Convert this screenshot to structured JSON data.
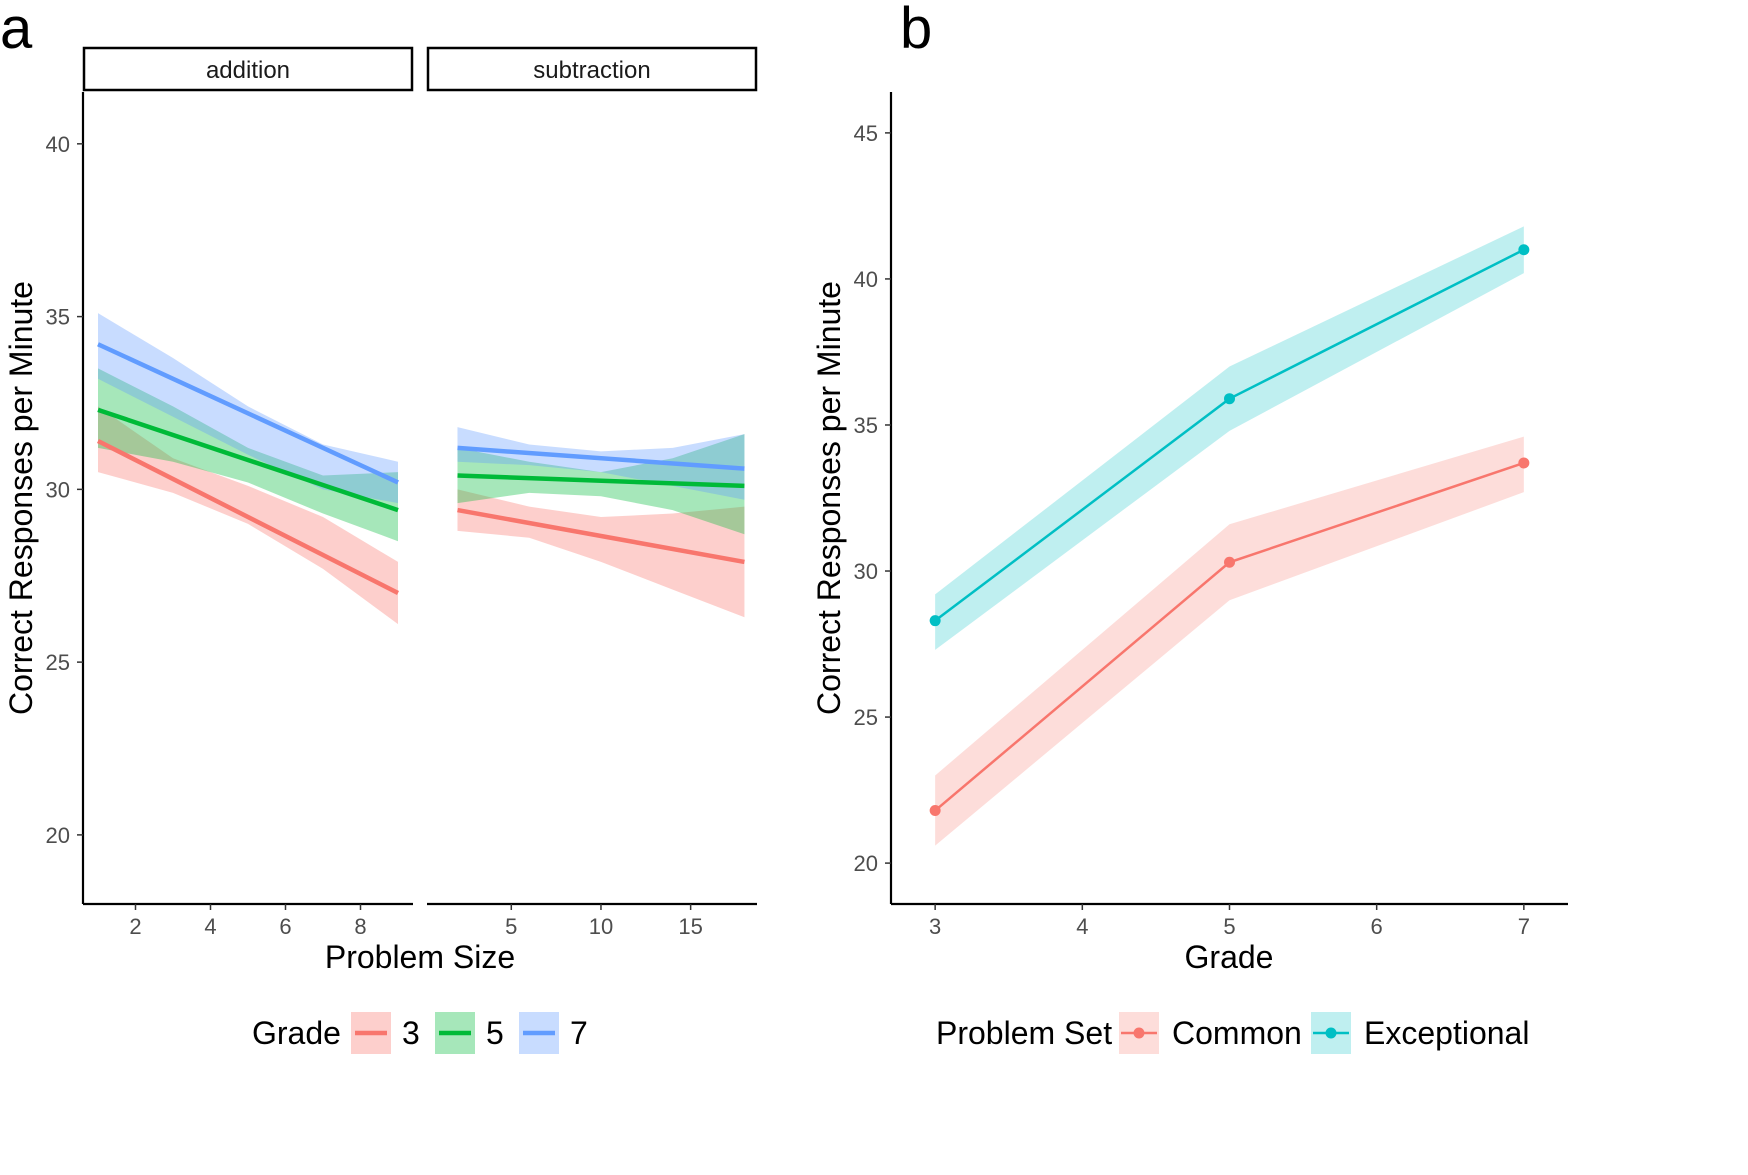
{
  "panels": {
    "a": {
      "letter": "a"
    },
    "b": {
      "letter": "b"
    }
  },
  "colors": {
    "grade_3": "#F8766D",
    "grade_5": "#00BA38",
    "grade_7": "#619CFF",
    "common": "#F8766D",
    "exceptional": "#00BFC4"
  },
  "chart_data": [
    {
      "type": "line",
      "panel": "a",
      "ylabel": "Correct Responses per Minute",
      "xlabel": "Problem Size",
      "ylim": [
        18,
        41.5
      ],
      "yticks": [
        20,
        25,
        30,
        35,
        40
      ],
      "legend": {
        "title": "Grade",
        "position": "bottom",
        "entries": [
          "3",
          "5",
          "7"
        ]
      },
      "facets": [
        {
          "label": "addition",
          "xlim": [
            0.6,
            9.4
          ],
          "xticks": [
            2,
            4,
            6,
            8
          ],
          "series": [
            {
              "name": "3",
              "x": [
                1,
                9
              ],
              "y": [
                31.4,
                27.0
              ],
              "lower": [
                [
                  1,
                  30.5
                ],
                [
                  3,
                  29.9
                ],
                [
                  5,
                  29.0
                ],
                [
                  7,
                  27.7
                ],
                [
                  9,
                  26.1
                ]
              ],
              "upper": [
                [
                  1,
                  32.4
                ],
                [
                  3,
                  30.9
                ],
                [
                  5,
                  30.1
                ],
                [
                  7,
                  29.2
                ],
                [
                  9,
                  27.9
                ]
              ]
            },
            {
              "name": "5",
              "x": [
                1,
                9
              ],
              "y": [
                32.3,
                29.4
              ],
              "lower": [
                [
                  1,
                  31.2
                ],
                [
                  3,
                  30.8
                ],
                [
                  5,
                  30.2
                ],
                [
                  7,
                  29.3
                ],
                [
                  9,
                  28.5
                ]
              ],
              "upper": [
                [
                  1,
                  33.5
                ],
                [
                  3,
                  32.4
                ],
                [
                  5,
                  31.2
                ],
                [
                  7,
                  30.4
                ],
                [
                  9,
                  30.5
                ]
              ]
            },
            {
              "name": "7",
              "x": [
                1,
                9
              ],
              "y": [
                34.2,
                30.2
              ],
              "lower": [
                [
                  1,
                  33.2
                ],
                [
                  3,
                  32.1
                ],
                [
                  5,
                  31.0
                ],
                [
                  7,
                  30.0
                ],
                [
                  9,
                  29.6
                ]
              ],
              "upper": [
                [
                  1,
                  35.1
                ],
                [
                  3,
                  33.8
                ],
                [
                  5,
                  32.4
                ],
                [
                  7,
                  31.3
                ],
                [
                  9,
                  30.8
                ]
              ]
            }
          ]
        },
        {
          "label": "subtraction",
          "xlim": [
            0.3,
            18.7
          ],
          "xticks": [
            5,
            10,
            15
          ],
          "series": [
            {
              "name": "3",
              "x": [
                2,
                18
              ],
              "y": [
                29.4,
                27.9
              ],
              "lower": [
                [
                  2,
                  28.8
                ],
                [
                  6,
                  28.6
                ],
                [
                  10,
                  27.9
                ],
                [
                  14,
                  27.1
                ],
                [
                  18,
                  26.3
                ]
              ],
              "upper": [
                [
                  2,
                  30.0
                ],
                [
                  6,
                  29.5
                ],
                [
                  10,
                  29.2
                ],
                [
                  14,
                  29.3
                ],
                [
                  18,
                  29.5
                ]
              ]
            },
            {
              "name": "5",
              "x": [
                2,
                18
              ],
              "y": [
                30.4,
                30.1
              ],
              "lower": [
                [
                  2,
                  29.6
                ],
                [
                  6,
                  29.9
                ],
                [
                  10,
                  29.8
                ],
                [
                  14,
                  29.4
                ],
                [
                  18,
                  28.7
                ]
              ],
              "upper": [
                [
                  2,
                  31.2
                ],
                [
                  6,
                  30.8
                ],
                [
                  10,
                  30.5
                ],
                [
                  14,
                  30.9
                ],
                [
                  18,
                  31.6
                ]
              ]
            },
            {
              "name": "7",
              "x": [
                2,
                18
              ],
              "y": [
                31.2,
                30.6
              ],
              "lower": [
                [
                  2,
                  30.8
                ],
                [
                  6,
                  30.7
                ],
                [
                  10,
                  30.5
                ],
                [
                  14,
                  30.1
                ],
                [
                  18,
                  29.7
                ]
              ],
              "upper": [
                [
                  2,
                  31.8
                ],
                [
                  6,
                  31.3
                ],
                [
                  10,
                  31.1
                ],
                [
                  14,
                  31.2
                ],
                [
                  18,
                  31.6
                ]
              ]
            }
          ]
        }
      ]
    },
    {
      "type": "line",
      "panel": "b",
      "ylabel": "Correct Responses per Minute",
      "xlabel": "Grade",
      "xlim": [
        2.7,
        7.3
      ],
      "ylim": [
        18.6,
        46.4
      ],
      "xticks": [
        3,
        4,
        5,
        6,
        7
      ],
      "yticks": [
        20,
        25,
        30,
        35,
        40,
        45
      ],
      "legend": {
        "title": "Problem Set",
        "position": "bottom",
        "entries": [
          "Common",
          "Exceptional"
        ]
      },
      "series": [
        {
          "name": "Common",
          "x": [
            3,
            5,
            7
          ],
          "y": [
            21.8,
            30.3,
            33.7
          ],
          "lower": [
            20.6,
            29.0,
            32.7
          ],
          "upper": [
            23.0,
            31.6,
            34.6
          ]
        },
        {
          "name": "Exceptional",
          "x": [
            3,
            5,
            7
          ],
          "y": [
            28.3,
            35.9,
            41.0
          ],
          "lower": [
            27.3,
            34.8,
            40.2
          ],
          "upper": [
            29.2,
            37.0,
            41.8
          ]
        }
      ]
    }
  ]
}
